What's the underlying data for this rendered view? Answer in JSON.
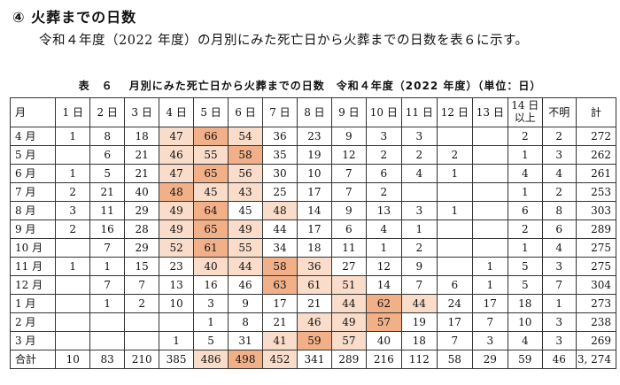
{
  "heading": "④ 火葬までの日数",
  "intro": "令和４年度（2022 年度）の月別にみた死亡日から火葬までの日数を表６に示す。",
  "caption": "表　６　 月別にみた死亡日から火葬までの日数　令和４年度（2022 年度）（単位：日）",
  "colors": {
    "light": "#f9dcc9",
    "medium": "#f2b088",
    "border": "#333333"
  },
  "table": {
    "corner": "月",
    "columns": [
      "1 日",
      "2 日",
      "3 日",
      "4 日",
      "5 日",
      "6 日",
      "7 日",
      "8 日",
      "9 日",
      "10 日",
      "11 日",
      "12 日",
      "13 日",
      [
        "14 日",
        "以上"
      ],
      "不明",
      "計"
    ],
    "rows": [
      {
        "label": "4 月",
        "cells": [
          "1",
          "8",
          "18",
          "47",
          "66",
          "54",
          "36",
          "23",
          "9",
          "3",
          "3",
          "",
          "",
          "2",
          "2",
          "272"
        ],
        "hl": [
          0,
          0,
          0,
          1,
          2,
          1,
          0,
          0,
          0,
          0,
          0,
          0,
          0,
          0,
          0,
          0
        ]
      },
      {
        "label": "5 月",
        "cells": [
          "",
          "6",
          "21",
          "46",
          "55",
          "58",
          "35",
          "19",
          "12",
          "2",
          "2",
          "2",
          "",
          "1",
          "3",
          "262"
        ],
        "hl": [
          0,
          0,
          0,
          1,
          1,
          2,
          0,
          0,
          0,
          0,
          0,
          0,
          0,
          0,
          0,
          0
        ]
      },
      {
        "label": "6 月",
        "cells": [
          "1",
          "5",
          "21",
          "47",
          "65",
          "56",
          "30",
          "10",
          "7",
          "6",
          "4",
          "1",
          "",
          "4",
          "4",
          "261"
        ],
        "hl": [
          0,
          0,
          0,
          1,
          2,
          1,
          0,
          0,
          0,
          0,
          0,
          0,
          0,
          0,
          0,
          0
        ]
      },
      {
        "label": "7 月",
        "cells": [
          "2",
          "21",
          "40",
          "48",
          "45",
          "43",
          "25",
          "17",
          "7",
          "2",
          "",
          "",
          "",
          "1",
          "2",
          "253"
        ],
        "hl": [
          0,
          0,
          0,
          2,
          1,
          1,
          0,
          0,
          0,
          0,
          0,
          0,
          0,
          0,
          0,
          0
        ]
      },
      {
        "label": "8 月",
        "cells": [
          "3",
          "11",
          "29",
          "49",
          "64",
          "45",
          "48",
          "14",
          "9",
          "13",
          "3",
          "1",
          "",
          "6",
          "8",
          "303"
        ],
        "hl": [
          0,
          0,
          0,
          1,
          2,
          0,
          1,
          0,
          0,
          0,
          0,
          0,
          0,
          0,
          0,
          0
        ]
      },
      {
        "label": "9 月",
        "cells": [
          "2",
          "16",
          "28",
          "49",
          "65",
          "49",
          "44",
          "17",
          "6",
          "4",
          "1",
          "",
          "",
          "2",
          "6",
          "289"
        ],
        "hl": [
          0,
          0,
          0,
          1,
          2,
          1,
          0,
          0,
          0,
          0,
          0,
          0,
          0,
          0,
          0,
          0
        ]
      },
      {
        "label": "10 月",
        "cells": [
          "",
          "7",
          "29",
          "52",
          "61",
          "55",
          "34",
          "18",
          "11",
          "1",
          "2",
          "",
          "",
          "1",
          "4",
          "275"
        ],
        "hl": [
          0,
          0,
          0,
          1,
          2,
          1,
          0,
          0,
          0,
          0,
          0,
          0,
          0,
          0,
          0,
          0
        ]
      },
      {
        "label": "11 月",
        "cells": [
          "1",
          "1",
          "15",
          "23",
          "40",
          "44",
          "58",
          "36",
          "27",
          "12",
          "9",
          "",
          "1",
          "5",
          "3",
          "275"
        ],
        "hl": [
          0,
          0,
          0,
          0,
          1,
          1,
          2,
          1,
          0,
          0,
          0,
          0,
          0,
          0,
          0,
          0
        ]
      },
      {
        "label": "12 月",
        "cells": [
          "",
          "7",
          "7",
          "13",
          "16",
          "46",
          "63",
          "61",
          "51",
          "14",
          "7",
          "6",
          "1",
          "5",
          "7",
          "304"
        ],
        "hl": [
          0,
          0,
          0,
          0,
          0,
          0,
          2,
          1,
          1,
          0,
          0,
          0,
          0,
          0,
          0,
          0
        ]
      },
      {
        "label": "1 月",
        "cells": [
          "",
          "1",
          "2",
          "10",
          "3",
          "9",
          "17",
          "21",
          "44",
          "62",
          "44",
          "24",
          "17",
          "18",
          "1",
          "273"
        ],
        "hl": [
          0,
          0,
          0,
          0,
          0,
          0,
          0,
          0,
          1,
          2,
          1,
          0,
          0,
          0,
          0,
          0
        ]
      },
      {
        "label": "2 月",
        "cells": [
          "",
          "",
          "",
          "",
          "1",
          "8",
          "21",
          "46",
          "49",
          "57",
          "19",
          "17",
          "7",
          "10",
          "3",
          "238"
        ],
        "hl": [
          0,
          0,
          0,
          0,
          0,
          0,
          0,
          1,
          1,
          2,
          0,
          0,
          0,
          0,
          0,
          0
        ]
      },
      {
        "label": "3 月",
        "cells": [
          "",
          "",
          "",
          "1",
          "5",
          "31",
          "41",
          "59",
          "57",
          "40",
          "18",
          "7",
          "3",
          "4",
          "3",
          "269"
        ],
        "hl": [
          0,
          0,
          0,
          0,
          0,
          0,
          1,
          2,
          1,
          0,
          0,
          0,
          0,
          0,
          0,
          0
        ]
      },
      {
        "label": "合計",
        "cells": [
          "10",
          "83",
          "210",
          "385",
          "486",
          "498",
          "452",
          "341",
          "289",
          "216",
          "112",
          "58",
          "29",
          "59",
          "46",
          "3, 274"
        ],
        "hl": [
          0,
          0,
          0,
          0,
          1,
          2,
          1,
          0,
          0,
          0,
          0,
          0,
          0,
          0,
          0,
          0
        ]
      }
    ]
  }
}
